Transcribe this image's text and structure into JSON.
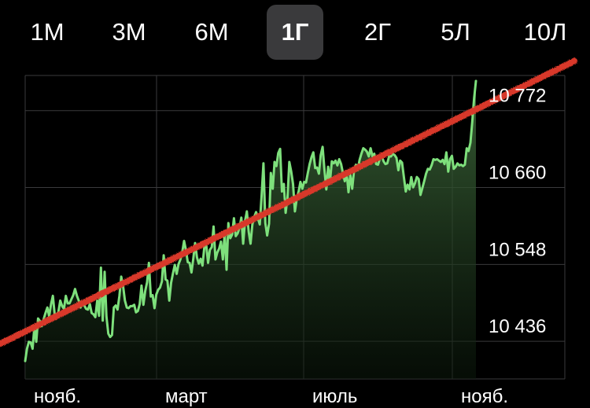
{
  "range_selector": {
    "options": [
      "1М",
      "3М",
      "6М",
      "1Г",
      "2Г",
      "5Л",
      "10Л"
    ],
    "selected": "1Г"
  },
  "colors": {
    "background": "#000000",
    "line": "#7ee07c",
    "area_fill_top": "#3f6b3c",
    "trend_line": "#d8382a",
    "grid": "#3a3a3c",
    "selected_tab": "#3a3a3c"
  },
  "chart_data": {
    "type": "area",
    "title": "",
    "xlabel": "",
    "ylabel": "",
    "x_tick_labels": [
      "нояб.",
      "март",
      "июль",
      "нояб."
    ],
    "y_tick_labels": [
      "10 772",
      "10 660",
      "10 548",
      "10 436"
    ],
    "y_ticks": [
      10772,
      10660,
      10548,
      10436
    ],
    "ylim": [
      10356,
      10798
    ],
    "grid": true,
    "y_axis_position": "right",
    "series": [
      {
        "values": [
          10382,
          10400,
          10410,
          10409,
          10400,
          10431,
          10410,
          10444,
          10440,
          10433,
          10443,
          10452,
          10460,
          10447,
          10465,
          10477,
          10449,
          10445,
          10454,
          10470,
          10462,
          10458,
          10477,
          10466,
          10466,
          10472,
          10478,
          10487,
          10477,
          10470,
          10460,
          10468,
          10463,
          10458,
          10457,
          10465,
          10452,
          10450,
          10446,
          10470,
          10448,
          10518,
          10441,
          10512,
          10447,
          10422,
          10417,
          10420,
          10460,
          10463,
          10457,
          10477,
          10505,
          10491,
          10470,
          10460,
          10459,
          10462,
          10462,
          10464,
          10453,
          10455,
          10465,
          10492,
          10464,
          10484,
          10497,
          10525,
          10476,
          10478,
          10459,
          10479,
          10486,
          10489,
          10498,
          10536,
          10501,
          10499,
          10470,
          10496,
          10510,
          10522,
          10509,
          10523,
          10530,
          10540,
          10557,
          10544,
          10526,
          10525,
          10511,
          10531,
          10554,
          10533,
          10524,
          10531,
          10521,
          10549,
          10552,
          10525,
          10544,
          10548,
          10578,
          10530,
          10540,
          10546,
          10556,
          10530,
          10568,
          10515,
          10583,
          10561,
          10566,
          10590,
          10564,
          10568,
          10576,
          10591,
          10553,
          10586,
          10600,
          10570,
          10553,
          10581,
          10592,
          10599,
          10590,
          10581,
          10624,
          10670,
          10583,
          10565,
          10582,
          10656,
          10633,
          10672,
          10666,
          10685,
          10691,
          10629,
          10640,
          10598,
          10621,
          10672,
          10658,
          10640,
          10600,
          10618,
          10629,
          10643,
          10633,
          10643,
          10642,
          10656,
          10669,
          10679,
          10686,
          10663,
          10664,
          10655,
          10682,
          10694,
          10661,
          10632,
          10665,
          10644,
          10673,
          10670,
          10674,
          10667,
          10676,
          10669,
          10656,
          10644,
          10657,
          10628,
          10654,
          10633,
          10659,
          10668,
          10660,
          10675,
          10684,
          10692,
          10690,
          10687,
          10680,
          10692,
          10680,
          10684,
          10669,
          10668,
          10677,
          10681,
          10673,
          10669,
          10670,
          10680,
          10680,
          10684,
          10682,
          10678,
          10660,
          10674,
          10671,
          10650,
          10629,
          10639,
          10632,
          10650,
          10635,
          10641,
          10650,
          10647,
          10624,
          10634,
          10644,
          10655,
          10662,
          10661,
          10667,
          10676,
          10675,
          10676,
          10674,
          10672,
          10675,
          10669,
          10686,
          10658,
          10676,
          10681,
          10662,
          10665,
          10670,
          10667,
          10668,
          10666,
          10668,
          10692,
          10688,
          10700,
          10730,
          10765,
          10790
        ]
      }
    ],
    "trend_line": {
      "start": 10407,
      "end": 10819
    }
  }
}
